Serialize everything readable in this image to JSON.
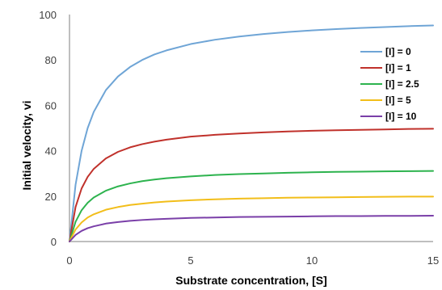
{
  "chart_data": {
    "type": "line",
    "title": "",
    "xlabel": "Substrate concentration, [S]",
    "ylabel": "Initial velocity, vi",
    "xlim": [
      0,
      15
    ],
    "ylim": [
      0,
      100
    ],
    "x_ticks": [
      0,
      5,
      10,
      15
    ],
    "y_ticks": [
      0,
      20,
      40,
      60,
      80,
      100
    ],
    "grid": false,
    "legend_position": "right",
    "x": [
      0,
      0.25,
      0.5,
      0.75,
      1,
      1.5,
      2,
      2.5,
      3,
      3.5,
      4,
      5,
      6,
      7,
      8,
      9,
      10,
      11,
      12,
      13,
      14,
      15
    ],
    "series": [
      {
        "name": "[I] = 0",
        "color": "#6FA5D6",
        "values": [
          0,
          25.0,
          40.0,
          50.0,
          57.1,
          66.7,
          72.7,
          76.9,
          80.0,
          82.4,
          84.2,
          87.0,
          88.9,
          90.3,
          91.4,
          92.3,
          93.0,
          93.6,
          94.1,
          94.5,
          94.9,
          95.2
        ]
      },
      {
        "name": "[I] = 1",
        "color": "#C0312B",
        "values": [
          0,
          15.2,
          23.4,
          28.5,
          32.0,
          36.6,
          39.5,
          41.5,
          42.9,
          44.0,
          44.9,
          46.2,
          47.0,
          47.6,
          48.1,
          48.5,
          48.8,
          49.0,
          49.2,
          49.4,
          49.6,
          49.7
        ]
      },
      {
        "name": "[I] = 2.5",
        "color": "#2DB34E",
        "values": [
          0,
          8.7,
          13.8,
          17.1,
          19.4,
          22.4,
          24.3,
          25.6,
          26.6,
          27.3,
          27.9,
          28.7,
          29.3,
          29.7,
          30.0,
          30.3,
          30.5,
          30.7,
          30.8,
          30.9,
          31.0,
          31.1
        ]
      },
      {
        "name": "[I] = 5",
        "color": "#F2BE1A",
        "values": [
          0,
          5.3,
          8.4,
          10.6,
          12.0,
          14.0,
          15.2,
          16.1,
          16.7,
          17.2,
          17.6,
          18.2,
          18.6,
          18.9,
          19.1,
          19.3,
          19.4,
          19.5,
          19.6,
          19.7,
          19.8,
          19.8
        ]
      },
      {
        "name": "[I] = 10",
        "color": "#7A3FA8",
        "values": [
          0,
          2.9,
          4.7,
          5.9,
          6.7,
          7.9,
          8.6,
          9.1,
          9.5,
          9.8,
          10.0,
          10.4,
          10.6,
          10.8,
          10.9,
          11.0,
          11.1,
          11.2,
          11.2,
          11.3,
          11.3,
          11.4
        ]
      }
    ]
  }
}
